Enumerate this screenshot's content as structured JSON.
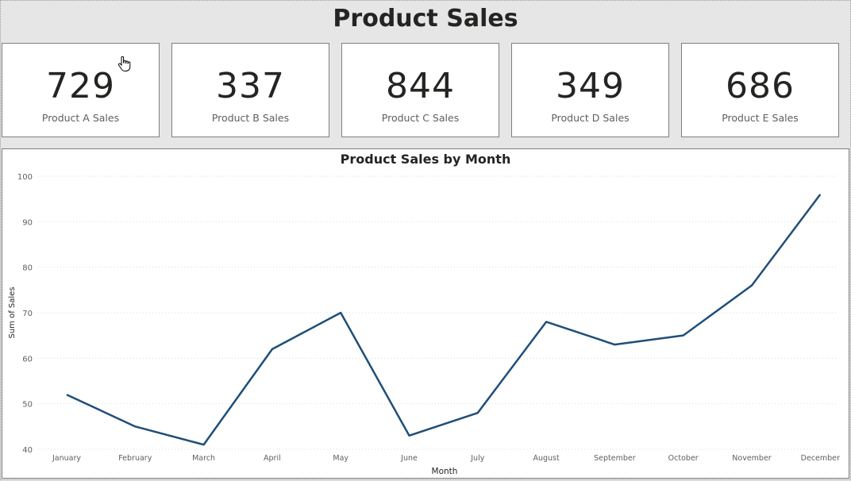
{
  "page": {
    "title": "Product Sales"
  },
  "cards": [
    {
      "value": "729",
      "label": "Product A Sales"
    },
    {
      "value": "337",
      "label": "Product B Sales"
    },
    {
      "value": "844",
      "label": "Product C Sales"
    },
    {
      "value": "349",
      "label": "Product D Sales"
    },
    {
      "value": "686",
      "label": "Product E Sales"
    }
  ],
  "chart_data": {
    "type": "line",
    "title": "Product Sales by Month",
    "xlabel": "Month",
    "ylabel": "Sum of Sales",
    "categories": [
      "January",
      "February",
      "March",
      "April",
      "May",
      "June",
      "July",
      "August",
      "September",
      "October",
      "November",
      "December"
    ],
    "values": [
      52,
      45,
      41,
      62,
      70,
      43,
      48,
      68,
      63,
      65,
      76,
      96
    ],
    "ylim": [
      40,
      100
    ],
    "yticks": [
      40,
      50,
      60,
      70,
      80,
      90,
      100
    ],
    "grid": true,
    "color": "#1f4e79"
  },
  "colors": {
    "background": "#e6e6e6",
    "card": "#ffffff",
    "line": "#1f4e79"
  }
}
